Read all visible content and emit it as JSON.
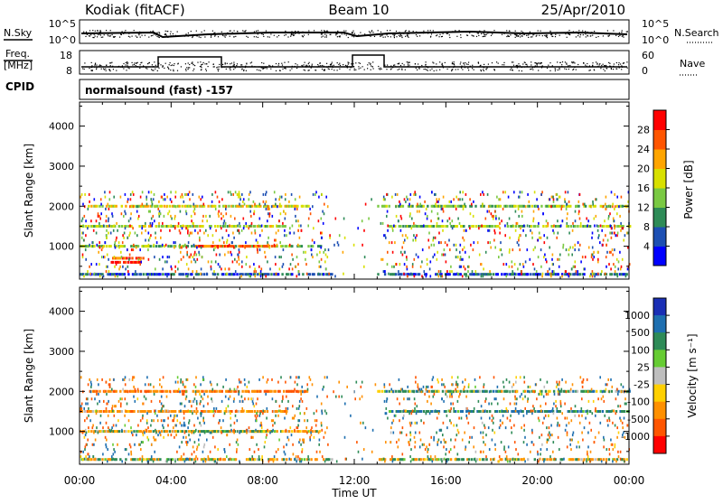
{
  "header": {
    "station": "Kodiak (fitACF)",
    "beam": "Beam 10",
    "date": "25/Apr/2010"
  },
  "strips": {
    "nsky_label": "N.Sky",
    "nsearch_label": "N.Search",
    "freq_label_line1": "Freq.",
    "freq_label_line2": "[MHz]",
    "nave_label": "Nave",
    "cpid_label": "CPID",
    "cpid_text": "normalsound (fast) -157",
    "noise_ticks_left": [
      "10^5",
      "10^0"
    ],
    "noise_ticks_right": [
      "10^5",
      "10^0"
    ],
    "freq_ticks": [
      "18",
      "8"
    ],
    "nave_ticks": [
      "60",
      "0"
    ]
  },
  "colorbars": {
    "power": {
      "label": "Power [dB]",
      "ticks": [
        "28",
        "24",
        "20",
        "16",
        "12",
        "8",
        "4"
      ],
      "colors": [
        "#0000ff",
        "#1d4fb3",
        "#2e8b57",
        "#7ac943",
        "#d8e000",
        "#ffa500",
        "#ff5500",
        "#ff0000"
      ]
    },
    "velocity": {
      "label": "Velocity [m s⁻¹]",
      "ticks": [
        "1000",
        "500",
        "100",
        "25",
        "-25",
        "-100",
        "-500",
        "-1000"
      ],
      "colors": [
        "#1a2fb5",
        "#1e6fb0",
        "#2e8b57",
        "#66cc33",
        "#bebebe",
        "#ffd000",
        "#ff9000",
        "#ff5500",
        "#ff0000"
      ]
    }
  },
  "chart_data": [
    {
      "type": "heatmap",
      "title": "Power",
      "xlabel": "Time UT",
      "ylabel": "Slant Range [km]",
      "xlim": [
        0,
        24
      ],
      "ylim": [
        180,
        4600
      ],
      "xticks": [
        "00:00",
        "04:00",
        "08:00",
        "12:00",
        "16:00",
        "20:00",
        "00:00"
      ],
      "yticks": [
        1000,
        2000,
        3000,
        4000
      ],
      "colorbar_label": "Power [dB]",
      "clim": [
        0,
        32
      ],
      "echo_bands": [
        {
          "t0": 0.0,
          "t1": 11.0,
          "range": 300,
          "value": 6
        },
        {
          "t0": 13.0,
          "t1": 24.0,
          "range": 300,
          "value": 6
        },
        {
          "t0": 0.0,
          "t1": 10.5,
          "range": 1000,
          "value": 14
        },
        {
          "t0": 5.0,
          "t1": 8.5,
          "range": 1000,
          "value": 26
        },
        {
          "t0": 1.3,
          "t1": 2.8,
          "range": 600,
          "value": 30
        },
        {
          "t0": 1.3,
          "t1": 2.8,
          "range": 700,
          "value": 28
        },
        {
          "t0": 0.0,
          "t1": 9.0,
          "range": 1500,
          "value": 16
        },
        {
          "t0": 13.5,
          "t1": 24.0,
          "range": 1500,
          "value": 14
        },
        {
          "t0": 0.3,
          "t1": 10.0,
          "range": 2000,
          "value": 18
        },
        {
          "t0": 13.0,
          "t1": 24.0,
          "range": 2000,
          "value": 14
        }
      ]
    },
    {
      "type": "heatmap",
      "title": "Velocity",
      "xlabel": "Time UT",
      "ylabel": "Slant Range [km]",
      "xlim": [
        0,
        24
      ],
      "ylim": [
        180,
        4600
      ],
      "xticks": [
        "00:00",
        "04:00",
        "08:00",
        "12:00",
        "16:00",
        "20:00",
        "00:00"
      ],
      "yticks": [
        1000,
        2000,
        3000,
        4000
      ],
      "colorbar_label": "Velocity [m s⁻¹]",
      "clim": [
        -1000,
        1000
      ],
      "echo_bands": [
        {
          "t0": 0.0,
          "t1": 11.0,
          "range": 300,
          "value": 10
        },
        {
          "t0": 13.0,
          "t1": 24.0,
          "range": 300,
          "value": 10
        },
        {
          "t0": 0.0,
          "t1": 10.5,
          "range": 1000,
          "value": -100
        },
        {
          "t0": 5.0,
          "t1": 8.5,
          "range": 1000,
          "value": 150
        },
        {
          "t0": 0.0,
          "t1": 9.0,
          "range": 1500,
          "value": -300
        },
        {
          "t0": 13.5,
          "t1": 24.0,
          "range": 1500,
          "value": 400
        },
        {
          "t0": 0.3,
          "t1": 10.0,
          "range": 2000,
          "value": -500
        },
        {
          "t0": 13.0,
          "t1": 24.0,
          "range": 2000,
          "value": 200
        }
      ]
    }
  ]
}
